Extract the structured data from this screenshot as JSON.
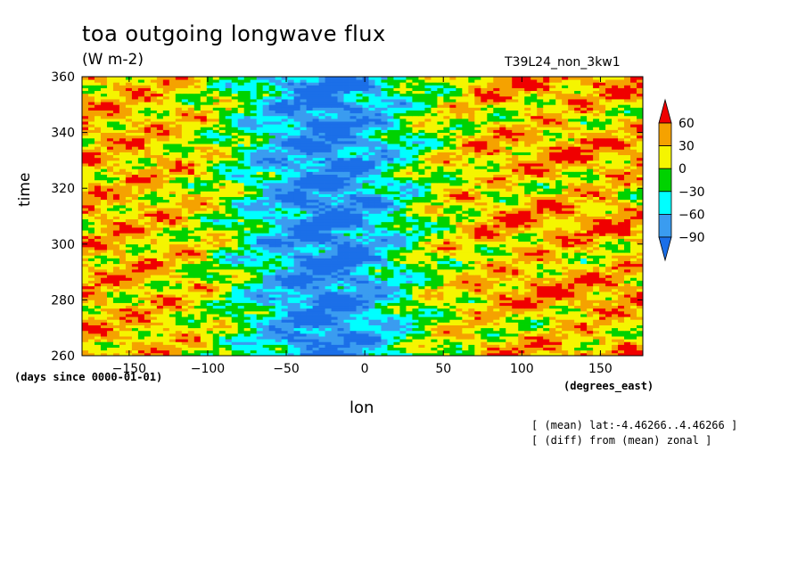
{
  "chart_data": {
    "type": "heatmap",
    "title": "toa outgoing longwave flux",
    "units": "(W m-2)",
    "run_name": "T39L24_non_3kw1",
    "xlabel": "lon",
    "ylabel": "time",
    "x_units": "(degrees_east)",
    "y_units": "(days since 0000-01-01)",
    "xlim": [
      -180,
      177
    ],
    "ylim": [
      260,
      360
    ],
    "x_ticks": [
      -150,
      -100,
      -50,
      0,
      50,
      100,
      150
    ],
    "y_ticks": [
      260,
      280,
      300,
      320,
      340,
      360
    ],
    "colorbar": {
      "levels": [
        -90,
        -60,
        -30,
        0,
        30,
        60
      ],
      "colors": [
        "#1b6fe8",
        "#3a9cf0",
        "#00ffff",
        "#00d200",
        "#f5f500",
        "#f5a200",
        "#f00000"
      ],
      "extend": "both"
    },
    "annotations": [
      "[ (mean) lat:-4.46266..4.46266 ]",
      "[ (diff) from (mean) zonal ]"
    ]
  }
}
